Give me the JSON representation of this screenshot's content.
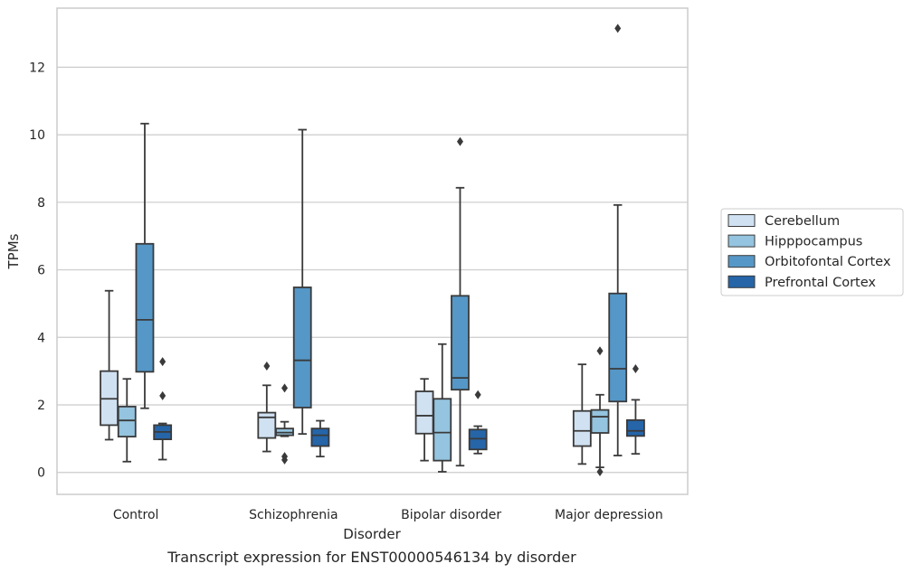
{
  "chart_data": {
    "type": "box",
    "title": "",
    "caption": "Transcript expression for ENST00000546134 by disorder",
    "xlabel": "Disorder",
    "ylabel": "TPMs",
    "ylim": [
      -0.65,
      13.75
    ],
    "yticks": [
      "0",
      "2",
      "4",
      "6",
      "8",
      "10",
      "12"
    ],
    "grid": true,
    "legend_position": "right",
    "categories": [
      "Control",
      "Schizophrenia",
      "Bipolar disorder",
      "Major depression"
    ],
    "series": [
      {
        "name": "Cerebellum",
        "color": "#d0e1f2",
        "boxes": [
          {
            "whislo": 0.97,
            "q1": 1.4,
            "med": 2.18,
            "q3": 3.0,
            "whishi": 5.38,
            "fliers": []
          },
          {
            "whislo": 0.62,
            "q1": 1.02,
            "med": 1.63,
            "q3": 1.77,
            "whishi": 2.58,
            "fliers": [
              3.15
            ]
          },
          {
            "whislo": 0.35,
            "q1": 1.15,
            "med": 1.68,
            "q3": 2.4,
            "whishi": 2.77,
            "fliers": []
          },
          {
            "whislo": 0.25,
            "q1": 0.78,
            "med": 1.23,
            "q3": 1.82,
            "whishi": 3.2,
            "fliers": []
          }
        ]
      },
      {
        "name": "Hipppocampus",
        "color": "#94c4df",
        "boxes": [
          {
            "whislo": 0.32,
            "q1": 1.06,
            "med": 1.54,
            "q3": 1.95,
            "whishi": 2.77,
            "fliers": []
          },
          {
            "whislo": 1.07,
            "q1": 1.1,
            "med": 1.18,
            "q3": 1.3,
            "whishi": 1.5,
            "fliers": [
              0.37,
              0.47,
              2.5
            ]
          },
          {
            "whislo": 0.02,
            "q1": 0.35,
            "med": 1.18,
            "q3": 2.18,
            "whishi": 3.8,
            "fliers": []
          },
          {
            "whislo": 0.15,
            "q1": 1.17,
            "med": 1.65,
            "q3": 1.85,
            "whishi": 2.3,
            "fliers": [
              0.02,
              3.6
            ]
          }
        ]
      },
      {
        "name": "Orbitofontal Cortex",
        "color": "#5597c7",
        "boxes": [
          {
            "whislo": 1.9,
            "q1": 2.98,
            "med": 4.52,
            "q3": 6.77,
            "whishi": 10.33,
            "fliers": []
          },
          {
            "whislo": 1.14,
            "q1": 1.92,
            "med": 3.32,
            "q3": 5.48,
            "whishi": 10.15,
            "fliers": []
          },
          {
            "whislo": 0.2,
            "q1": 2.45,
            "med": 2.8,
            "q3": 5.23,
            "whishi": 8.43,
            "fliers": [
              9.8
            ]
          },
          {
            "whislo": 0.5,
            "q1": 2.1,
            "med": 3.07,
            "q3": 5.3,
            "whishi": 7.92,
            "fliers": [
              13.15
            ]
          }
        ]
      },
      {
        "name": "Prefrontal Cortex",
        "color": "#2565a8",
        "boxes": [
          {
            "whislo": 0.38,
            "q1": 0.98,
            "med": 1.2,
            "q3": 1.4,
            "whishi": 1.45,
            "fliers": [
              2.27,
              3.28
            ]
          },
          {
            "whislo": 0.47,
            "q1": 0.78,
            "med": 1.1,
            "q3": 1.3,
            "whishi": 1.53,
            "fliers": []
          },
          {
            "whislo": 0.56,
            "q1": 0.68,
            "med": 1.0,
            "q3": 1.27,
            "whishi": 1.37,
            "fliers": [
              2.3
            ]
          },
          {
            "whislo": 0.55,
            "q1": 1.08,
            "med": 1.23,
            "q3": 1.55,
            "whishi": 2.15,
            "fliers": [
              3.07
            ]
          }
        ]
      }
    ]
  }
}
